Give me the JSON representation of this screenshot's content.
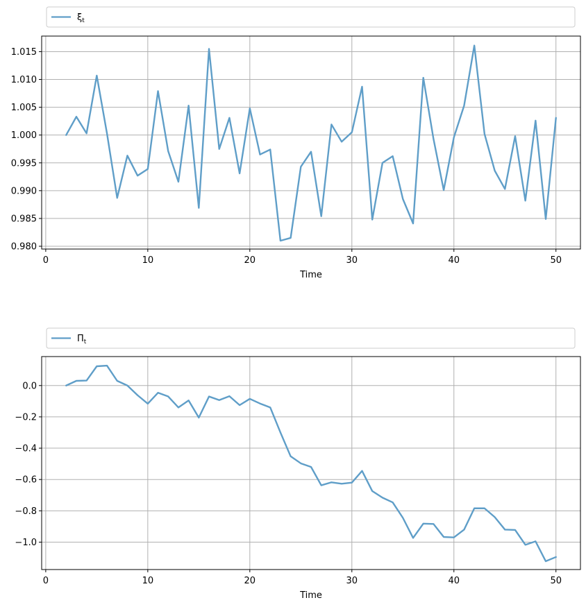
{
  "chart_data": [
    {
      "type": "line",
      "title": "",
      "xlabel": "Time",
      "ylabel": "",
      "xlim": [
        -0.4,
        52.4
      ],
      "ylim": [
        0.9795,
        1.0178
      ],
      "xticks": [
        0,
        10,
        20,
        30,
        40,
        50
      ],
      "yticks": [
        0.98,
        0.985,
        0.99,
        0.995,
        1.0,
        1.005,
        1.01,
        1.015
      ],
      "ytick_labels": [
        "0.980",
        "0.985",
        "0.990",
        "0.995",
        "1.000",
        "1.005",
        "1.010",
        "1.015"
      ],
      "grid": true,
      "legend_position": "top, above plot",
      "legend_labels": [
        {
          "base": "ξ",
          "sub": "t"
        }
      ],
      "color": "#5f9ec8",
      "series": [
        {
          "x": [
            2,
            3,
            4,
            5,
            6,
            7,
            8,
            9,
            10,
            11,
            12,
            13,
            14,
            15,
            16,
            17,
            18,
            19,
            20,
            21,
            22,
            23,
            24,
            25,
            26,
            27,
            28,
            29,
            30,
            31,
            32,
            33,
            34,
            35,
            36,
            37,
            38,
            39,
            40,
            41,
            42,
            43,
            44,
            45,
            46,
            47,
            48,
            49,
            50
          ],
          "values": [
            1.0,
            1.0033,
            1.0003,
            1.0107,
            1.0003,
            0.9887,
            0.9963,
            0.9927,
            0.9939,
            1.0079,
            0.9971,
            0.9916,
            1.0053,
            0.9869,
            1.0155,
            0.9975,
            1.0031,
            0.9931,
            1.0048,
            0.9965,
            0.9974,
            0.981,
            0.9815,
            0.9943,
            0.997,
            0.9854,
            1.0019,
            0.9988,
            1.0005,
            1.0087,
            0.9848,
            0.995,
            0.9962,
            0.9885,
            0.9841,
            1.0103,
            0.9993,
            0.9901,
            0.9996,
            1.0053,
            1.0161,
            1.0002,
            0.9936,
            0.9903,
            0.9998,
            0.9882,
            1.0026,
            0.9849,
            1.0031
          ]
        }
      ]
    },
    {
      "type": "line",
      "title": "",
      "xlabel": "Time",
      "ylabel": "",
      "xlim": [
        -0.4,
        52.4
      ],
      "ylim": [
        -1.175,
        0.185
      ],
      "xticks": [
        0,
        10,
        20,
        30,
        40,
        50
      ],
      "yticks": [
        -1.0,
        -0.8,
        -0.6,
        -0.4,
        -0.2,
        0.0
      ],
      "ytick_labels": [
        "−1.0",
        "−0.8",
        "−0.6",
        "−0.4",
        "−0.2",
        "0.0"
      ],
      "grid": true,
      "legend_position": "top, above plot",
      "legend_labels": [
        {
          "base": "Π",
          "sub": "t"
        }
      ],
      "color": "#5f9ec8",
      "series": [
        {
          "x": [
            2,
            3,
            4,
            5,
            6,
            7,
            8,
            9,
            10,
            11,
            12,
            13,
            14,
            15,
            16,
            17,
            18,
            19,
            20,
            21,
            22,
            23,
            24,
            25,
            26,
            27,
            28,
            29,
            30,
            31,
            32,
            33,
            34,
            35,
            36,
            37,
            38,
            39,
            40,
            41,
            42,
            43,
            44,
            45,
            46,
            47,
            48,
            49,
            50
          ],
          "values": [
            0.0,
            0.03,
            0.032,
            0.123,
            0.127,
            0.03,
            0.0,
            -0.062,
            -0.116,
            -0.046,
            -0.07,
            -0.14,
            -0.095,
            -0.205,
            -0.07,
            -0.093,
            -0.068,
            -0.125,
            -0.085,
            -0.115,
            -0.14,
            -0.3,
            -0.452,
            -0.497,
            -0.52,
            -0.637,
            -0.618,
            -0.627,
            -0.62,
            -0.545,
            -0.674,
            -0.716,
            -0.746,
            -0.845,
            -0.973,
            -0.882,
            -0.884,
            -0.967,
            -0.97,
            -0.92,
            -0.784,
            -0.784,
            -0.84,
            -0.92,
            -0.922,
            -1.017,
            -0.995,
            -1.122,
            -1.095
          ]
        }
      ]
    }
  ]
}
